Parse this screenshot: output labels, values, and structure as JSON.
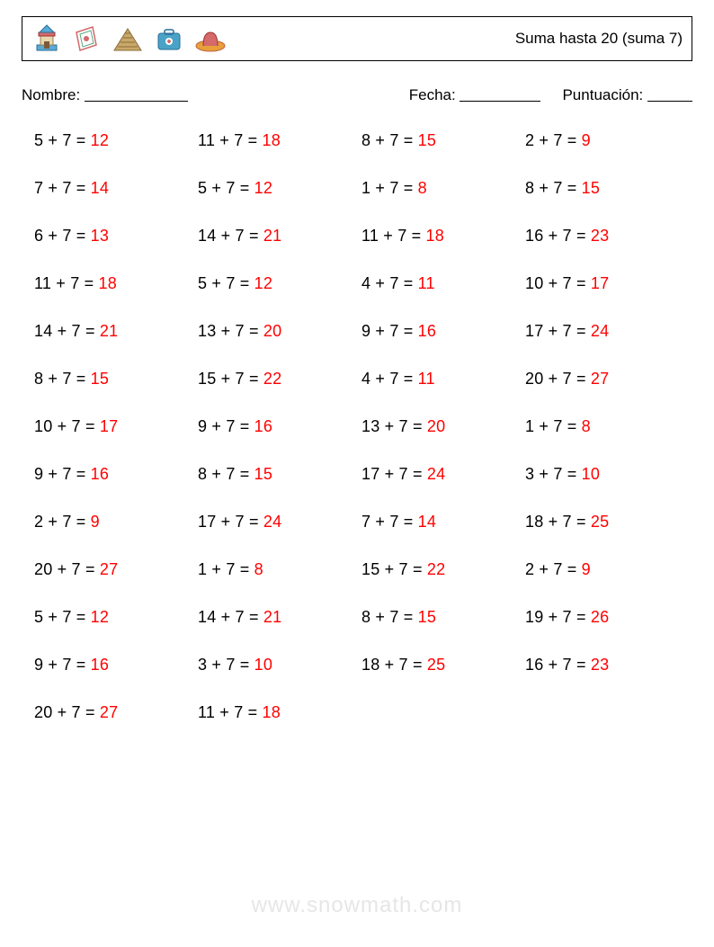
{
  "header": {
    "title": "Suma hasta 20 (suma 7)"
  },
  "info": {
    "name_label": "Nombre:",
    "date_label": "Fecha:",
    "score_label": "Puntuación:",
    "name_blank_width": 115,
    "date_blank_width": 90,
    "score_blank_width": 50
  },
  "styling": {
    "problem_font_size": 18,
    "problem_color": "#000000",
    "answer_color": "#ff0000",
    "background": "#ffffff",
    "border_color": "#000000",
    "grid_columns": 4,
    "row_gap": 32,
    "watermark_color": "#e6e6e6"
  },
  "problems": [
    {
      "a": 5,
      "b": 7,
      "ans": 12
    },
    {
      "a": 11,
      "b": 7,
      "ans": 18
    },
    {
      "a": 8,
      "b": 7,
      "ans": 15
    },
    {
      "a": 2,
      "b": 7,
      "ans": 9
    },
    {
      "a": 7,
      "b": 7,
      "ans": 14
    },
    {
      "a": 5,
      "b": 7,
      "ans": 12
    },
    {
      "a": 1,
      "b": 7,
      "ans": 8
    },
    {
      "a": 8,
      "b": 7,
      "ans": 15
    },
    {
      "a": 6,
      "b": 7,
      "ans": 13
    },
    {
      "a": 14,
      "b": 7,
      "ans": 21
    },
    {
      "a": 11,
      "b": 7,
      "ans": 18
    },
    {
      "a": 16,
      "b": 7,
      "ans": 23
    },
    {
      "a": 11,
      "b": 7,
      "ans": 18
    },
    {
      "a": 5,
      "b": 7,
      "ans": 12
    },
    {
      "a": 4,
      "b": 7,
      "ans": 11
    },
    {
      "a": 10,
      "b": 7,
      "ans": 17
    },
    {
      "a": 14,
      "b": 7,
      "ans": 21
    },
    {
      "a": 13,
      "b": 7,
      "ans": 20
    },
    {
      "a": 9,
      "b": 7,
      "ans": 16
    },
    {
      "a": 17,
      "b": 7,
      "ans": 24
    },
    {
      "a": 8,
      "b": 7,
      "ans": 15
    },
    {
      "a": 15,
      "b": 7,
      "ans": 22
    },
    {
      "a": 4,
      "b": 7,
      "ans": 11
    },
    {
      "a": 20,
      "b": 7,
      "ans": 27
    },
    {
      "a": 10,
      "b": 7,
      "ans": 17
    },
    {
      "a": 9,
      "b": 7,
      "ans": 16
    },
    {
      "a": 13,
      "b": 7,
      "ans": 20
    },
    {
      "a": 1,
      "b": 7,
      "ans": 8
    },
    {
      "a": 9,
      "b": 7,
      "ans": 16
    },
    {
      "a": 8,
      "b": 7,
      "ans": 15
    },
    {
      "a": 17,
      "b": 7,
      "ans": 24
    },
    {
      "a": 3,
      "b": 7,
      "ans": 10
    },
    {
      "a": 2,
      "b": 7,
      "ans": 9
    },
    {
      "a": 17,
      "b": 7,
      "ans": 24
    },
    {
      "a": 7,
      "b": 7,
      "ans": 14
    },
    {
      "a": 18,
      "b": 7,
      "ans": 25
    },
    {
      "a": 20,
      "b": 7,
      "ans": 27
    },
    {
      "a": 1,
      "b": 7,
      "ans": 8
    },
    {
      "a": 15,
      "b": 7,
      "ans": 22
    },
    {
      "a": 2,
      "b": 7,
      "ans": 9
    },
    {
      "a": 5,
      "b": 7,
      "ans": 12
    },
    {
      "a": 14,
      "b": 7,
      "ans": 21
    },
    {
      "a": 8,
      "b": 7,
      "ans": 15
    },
    {
      "a": 19,
      "b": 7,
      "ans": 26
    },
    {
      "a": 9,
      "b": 7,
      "ans": 16
    },
    {
      "a": 3,
      "b": 7,
      "ans": 10
    },
    {
      "a": 18,
      "b": 7,
      "ans": 25
    },
    {
      "a": 16,
      "b": 7,
      "ans": 23
    },
    {
      "a": 20,
      "b": 7,
      "ans": 27
    },
    {
      "a": 11,
      "b": 7,
      "ans": 18
    }
  ],
  "watermark": {
    "text": "www.snowmath.com"
  }
}
